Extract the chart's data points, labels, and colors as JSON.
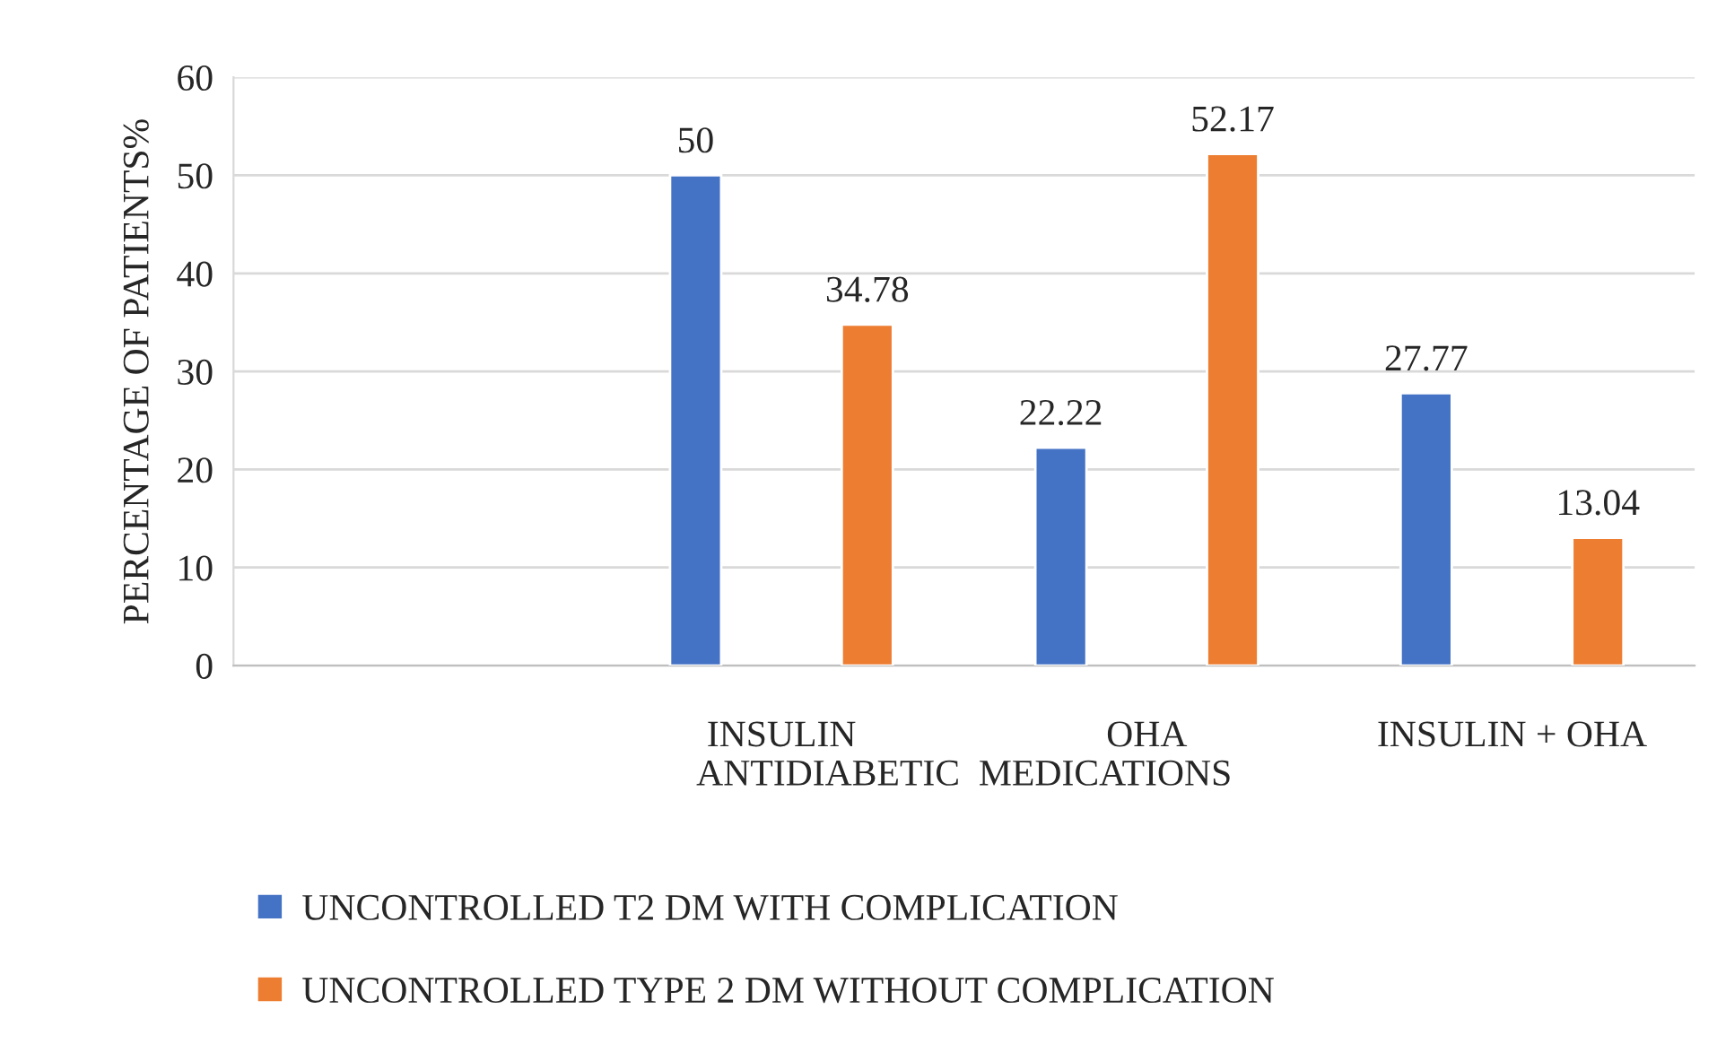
{
  "chart_data": {
    "type": "bar",
    "xlabel": "ANTIDIABETIC  MEDICATIONS",
    "ylabel": "PERCENTAGE OF PATIENTS%",
    "categories": [
      null,
      "INSULIN",
      "OHA",
      "INSULIN + OHA"
    ],
    "series": [
      {
        "name": "UNCONTROLLED T2 DM WITH COMPLICATION",
        "color": "#4472c4",
        "values": [
          null,
          50,
          22.22,
          27.77
        ]
      },
      {
        "name": "UNCONTROLLED TYPE 2 DM WITHOUT COMPLICATION",
        "color": "#ed7d31",
        "values": [
          null,
          34.78,
          52.17,
          13.04
        ]
      }
    ],
    "ylim": [
      0,
      60
    ],
    "yticks": [
      0,
      10,
      20,
      30,
      40,
      50,
      60
    ],
    "grid": "y",
    "legend": "bottom",
    "data_labels": true
  }
}
